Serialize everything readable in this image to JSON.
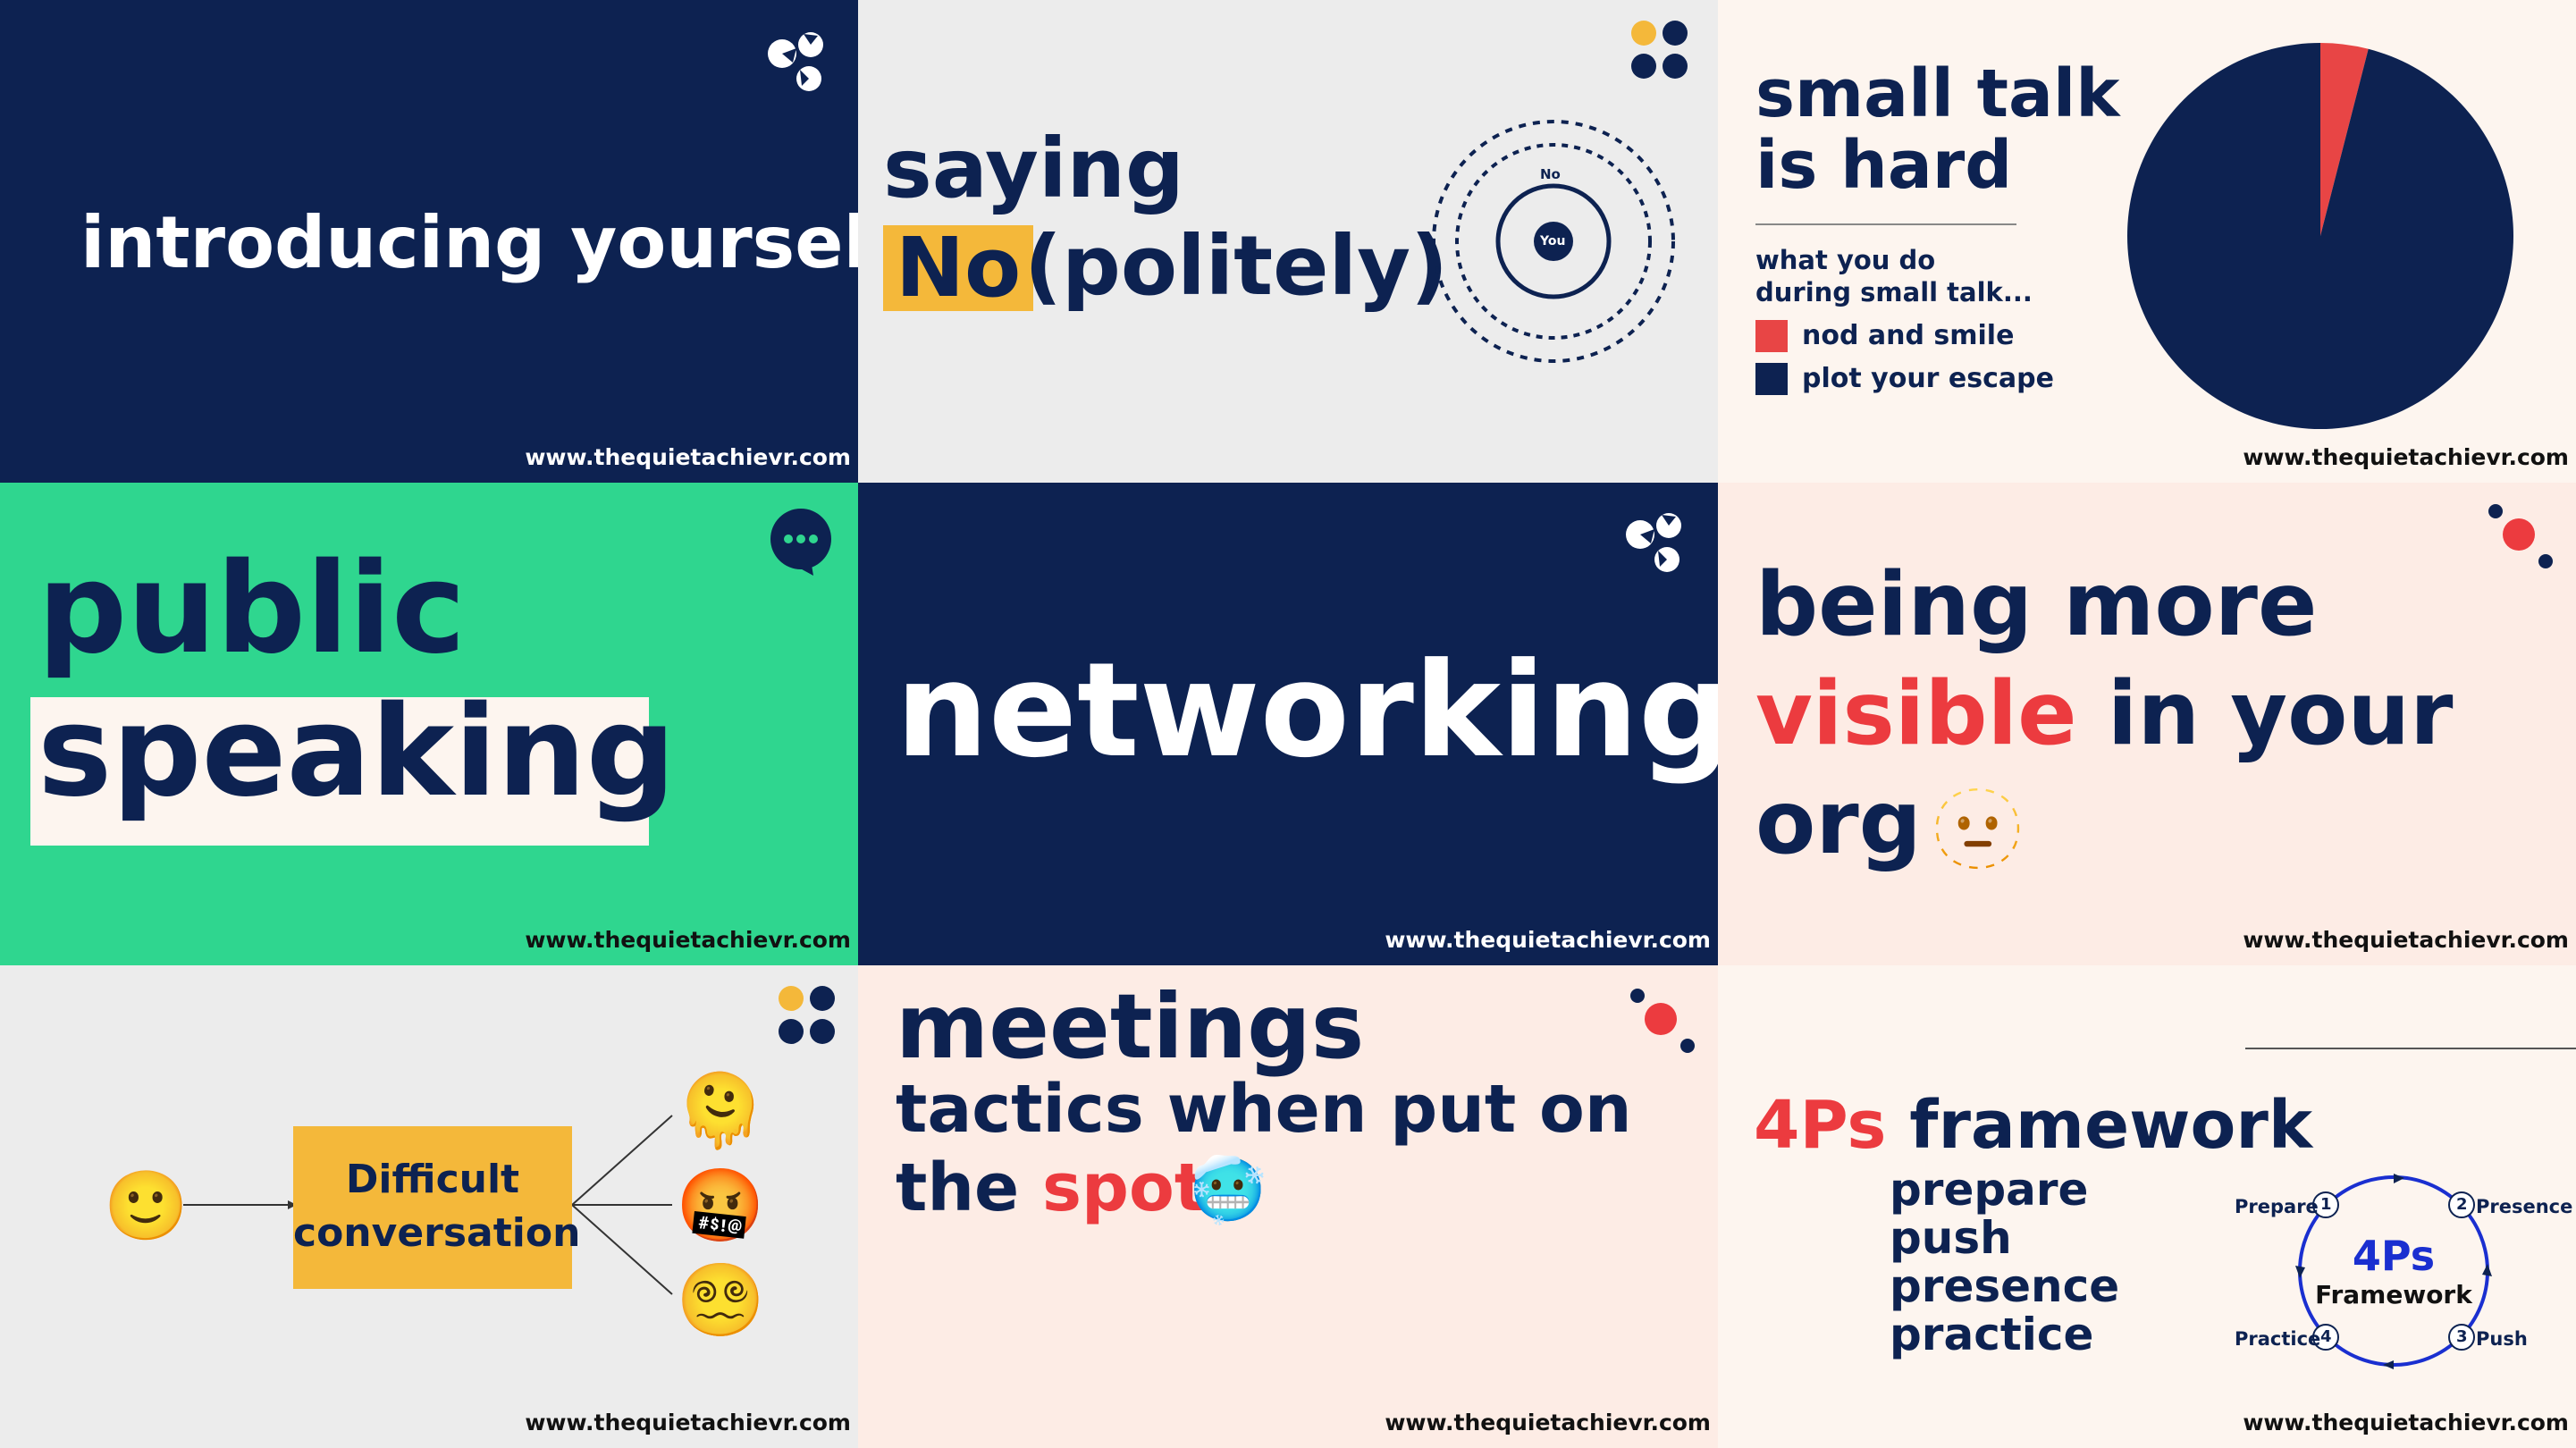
{
  "site_url": "www.thequietachievr.com",
  "colors": {
    "navy": "#0d2251",
    "red": "#ec3b3f",
    "yellow": "#f4b83a",
    "green": "#2fd68f",
    "cream": "#fdf5ef",
    "pink": "#fdecE5",
    "grey": "#ececec"
  },
  "tiles": {
    "introducing": {
      "title": "introducing yourself"
    },
    "saying_no": {
      "line1": "saying",
      "highlight": "No",
      "rest": "(politely)",
      "diagram_outer": "No",
      "diagram_inner": "You"
    },
    "small_talk": {
      "title_line1": "small talk",
      "title_line2": "is hard",
      "caption_line1": "what you do",
      "caption_line2": "during small talk...",
      "legend": [
        {
          "label": "nod and smile",
          "color": "#e84545"
        },
        {
          "label": "plot your escape",
          "color": "#0d2251"
        }
      ]
    },
    "public_speaking": {
      "line1": "public",
      "line2": "speaking"
    },
    "networking": {
      "title": "networking"
    },
    "visible": {
      "line1": "being more",
      "highlight": "visible",
      "rest": " in your",
      "line3": "org",
      "emoji": "🫥"
    },
    "difficult": {
      "box_line1": "Difficult",
      "box_line2": "conversation",
      "left_emoji": "🙂",
      "right_emojis": [
        "🫠",
        "🤬",
        "😵‍💫"
      ]
    },
    "meetings": {
      "title": "meetings",
      "line2": "tactics when put on",
      "line3_a": "the ",
      "line3_red": "spot",
      "emoji": "🥶"
    },
    "fourps": {
      "title_red": "4Ps",
      "title_rest": " framework",
      "items": [
        "prepare",
        "push",
        "presence",
        "practice"
      ],
      "diagram_center_1": "4Ps",
      "diagram_center_2": "Framework",
      "nodes": [
        {
          "num": "1",
          "label": "Prepare"
        },
        {
          "num": "2",
          "label": "Presence"
        },
        {
          "num": "3",
          "label": "Push"
        },
        {
          "num": "4",
          "label": "Practice"
        }
      ]
    }
  },
  "chart_data": {
    "type": "pie",
    "categories": [
      "nod and smile",
      "plot your escape"
    ],
    "values": [
      4,
      96
    ],
    "colors": [
      "#e84545",
      "#0d2251"
    ],
    "title": "",
    "xlabel": "",
    "ylabel": ""
  }
}
